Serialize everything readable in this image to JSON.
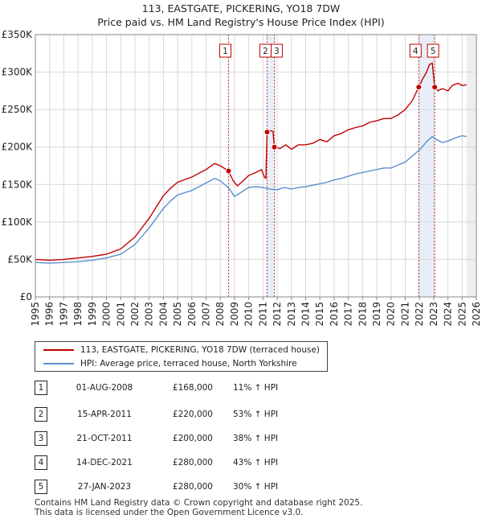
{
  "chart_data": {
    "type": "line",
    "title": "113, EASTGATE, PICKERING, YO18 7DW",
    "subtitle": "Price paid vs. HM Land Registry's House Price Index (HPI)",
    "xlim": [
      1995,
      2026
    ],
    "ylim": [
      0,
      350000
    ],
    "x_ticks": [
      "1995",
      "1996",
      "1997",
      "1998",
      "1999",
      "2000",
      "2001",
      "2002",
      "2003",
      "2004",
      "2005",
      "2006",
      "2007",
      "2008",
      "2009",
      "2010",
      "2011",
      "2012",
      "2013",
      "2014",
      "2015",
      "2016",
      "2017",
      "2018",
      "2019",
      "2020",
      "2021",
      "2022",
      "2023",
      "2024",
      "2025",
      "2026"
    ],
    "y_ticks": [
      {
        "value": 0,
        "label": "£0"
      },
      {
        "value": 50000,
        "label": "£50K"
      },
      {
        "value": 100000,
        "label": "£100K"
      },
      {
        "value": 150000,
        "label": "£150K"
      },
      {
        "value": 200000,
        "label": "£200K"
      },
      {
        "value": 250000,
        "label": "£250K"
      },
      {
        "value": 300000,
        "label": "£300K"
      },
      {
        "value": 350000,
        "label": "£350K"
      }
    ],
    "future_shade_from": 2025.3,
    "series": [
      {
        "name": "113, EASTGATE, PICKERING, YO18 7DW (terraced house)",
        "color": "#c00000",
        "points": [
          [
            1995.0,
            50000
          ],
          [
            1996.0,
            49000
          ],
          [
            1997.0,
            50000
          ],
          [
            1998.0,
            52000
          ],
          [
            1999.0,
            54000
          ],
          [
            2000.0,
            57000
          ],
          [
            2001.0,
            64000
          ],
          [
            2002.0,
            80000
          ],
          [
            2003.0,
            105000
          ],
          [
            2004.0,
            135000
          ],
          [
            2004.5,
            145000
          ],
          [
            2005.0,
            153000
          ],
          [
            2006.0,
            160000
          ],
          [
            2007.0,
            170000
          ],
          [
            2007.6,
            178000
          ],
          [
            2008.0,
            175000
          ],
          [
            2008.58,
            168000
          ],
          [
            2008.9,
            155000
          ],
          [
            2009.2,
            148000
          ],
          [
            2009.6,
            155000
          ],
          [
            2010.0,
            162000
          ],
          [
            2010.5,
            166000
          ],
          [
            2010.9,
            170000
          ],
          [
            2011.1,
            160000
          ],
          [
            2011.2,
            158000
          ],
          [
            2011.29,
            220000
          ],
          [
            2011.5,
            222000
          ],
          [
            2011.7,
            221000
          ],
          [
            2011.8,
            200000
          ],
          [
            2012.2,
            198000
          ],
          [
            2012.6,
            203000
          ],
          [
            2013.0,
            197000
          ],
          [
            2013.5,
            203000
          ],
          [
            2014.0,
            203000
          ],
          [
            2014.5,
            205000
          ],
          [
            2015.0,
            210000
          ],
          [
            2015.5,
            207000
          ],
          [
            2016.0,
            215000
          ],
          [
            2016.5,
            218000
          ],
          [
            2017.0,
            223000
          ],
          [
            2017.5,
            226000
          ],
          [
            2018.0,
            228000
          ],
          [
            2018.5,
            233000
          ],
          [
            2019.0,
            235000
          ],
          [
            2019.5,
            238000
          ],
          [
            2020.0,
            238000
          ],
          [
            2020.5,
            243000
          ],
          [
            2021.0,
            250000
          ],
          [
            2021.5,
            262000
          ],
          [
            2021.95,
            280000
          ],
          [
            2022.2,
            290000
          ],
          [
            2022.5,
            300000
          ],
          [
            2022.7,
            310000
          ],
          [
            2022.9,
            312000
          ],
          [
            2023.07,
            280000
          ],
          [
            2023.3,
            275000
          ],
          [
            2023.6,
            278000
          ],
          [
            2024.0,
            275000
          ],
          [
            2024.3,
            282000
          ],
          [
            2024.7,
            285000
          ],
          [
            2025.0,
            282000
          ],
          [
            2025.3,
            283000
          ]
        ]
      },
      {
        "name": "HPI: Average price, terraced house, North Yorkshire",
        "color": "#5b8fd0",
        "points": [
          [
            1995.0,
            46000
          ],
          [
            1996.0,
            45000
          ],
          [
            1997.0,
            46000
          ],
          [
            1998.0,
            47000
          ],
          [
            1999.0,
            49000
          ],
          [
            2000.0,
            52000
          ],
          [
            2001.0,
            57000
          ],
          [
            2002.0,
            70000
          ],
          [
            2003.0,
            92000
          ],
          [
            2004.0,
            118000
          ],
          [
            2004.5,
            128000
          ],
          [
            2005.0,
            136000
          ],
          [
            2006.0,
            142000
          ],
          [
            2007.0,
            152000
          ],
          [
            2007.6,
            158000
          ],
          [
            2008.0,
            155000
          ],
          [
            2008.6,
            145000
          ],
          [
            2009.0,
            134000
          ],
          [
            2009.5,
            140000
          ],
          [
            2010.0,
            146000
          ],
          [
            2010.5,
            147000
          ],
          [
            2011.0,
            146000
          ],
          [
            2011.5,
            144000
          ],
          [
            2012.0,
            143000
          ],
          [
            2012.5,
            146000
          ],
          [
            2013.0,
            144000
          ],
          [
            2013.5,
            146000
          ],
          [
            2014.0,
            147000
          ],
          [
            2014.5,
            149000
          ],
          [
            2015.0,
            151000
          ],
          [
            2015.5,
            153000
          ],
          [
            2016.0,
            156000
          ],
          [
            2016.5,
            158000
          ],
          [
            2017.0,
            161000
          ],
          [
            2017.5,
            164000
          ],
          [
            2018.0,
            166000
          ],
          [
            2018.5,
            168000
          ],
          [
            2019.0,
            170000
          ],
          [
            2019.5,
            172000
          ],
          [
            2020.0,
            172000
          ],
          [
            2020.5,
            176000
          ],
          [
            2021.0,
            180000
          ],
          [
            2021.5,
            188000
          ],
          [
            2022.0,
            196000
          ],
          [
            2022.5,
            207000
          ],
          [
            2022.9,
            214000
          ],
          [
            2023.2,
            210000
          ],
          [
            2023.6,
            206000
          ],
          [
            2024.0,
            208000
          ],
          [
            2024.5,
            212000
          ],
          [
            2025.0,
            215000
          ],
          [
            2025.3,
            214000
          ]
        ]
      }
    ],
    "sales": [
      {
        "id": "1",
        "x": 2008.58,
        "price": 168000
      },
      {
        "id": "2",
        "x": 2011.29,
        "price": 220000
      },
      {
        "id": "3",
        "x": 2011.8,
        "price": 200000
      },
      {
        "id": "4",
        "x": 2021.95,
        "price": 280000
      },
      {
        "id": "5",
        "x": 2023.07,
        "price": 280000
      }
    ]
  },
  "legend": {
    "property_label": "113, EASTGATE, PICKERING, YO18 7DW (terraced house)",
    "hpi_label": "HPI: Average price, terraced house, North Yorkshire"
  },
  "transactions": [
    {
      "num": "1",
      "date": "01-AUG-2008",
      "price": "£168,000",
      "hpi": "11% ↑ HPI"
    },
    {
      "num": "2",
      "date": "15-APR-2011",
      "price": "£220,000",
      "hpi": "53% ↑ HPI"
    },
    {
      "num": "3",
      "date": "21-OCT-2011",
      "price": "£200,000",
      "hpi": "38% ↑ HPI"
    },
    {
      "num": "4",
      "date": "14-DEC-2021",
      "price": "£280,000",
      "hpi": "43% ↑ HPI"
    },
    {
      "num": "5",
      "date": "27-JAN-2023",
      "price": "£280,000",
      "hpi": "30% ↑ HPI"
    }
  ],
  "footer": {
    "line1": "Contains HM Land Registry data © Crown copyright and database right 2025.",
    "line2": "This data is licensed under the Open Government Licence v3.0."
  }
}
